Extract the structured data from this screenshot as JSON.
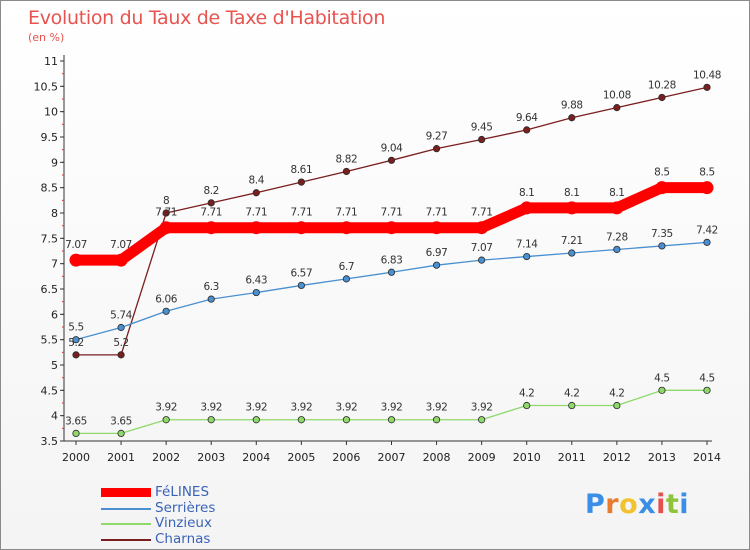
{
  "chart_data": {
    "type": "line",
    "title": "Evolution du Taux de Taxe d'Habitation",
    "subtitle": "(en %)",
    "x": [
      2000,
      2001,
      2002,
      2003,
      2004,
      2005,
      2006,
      2007,
      2008,
      2009,
      2010,
      2011,
      2012,
      2013,
      2014
    ],
    "ylim": [
      3.5,
      11
    ],
    "yticks": [
      "3.5",
      "4",
      "4.5",
      "5",
      "5.5",
      "6",
      "6.5",
      "7",
      "7.5",
      "8",
      "8.5",
      "9",
      "9.5",
      "10",
      "10.5",
      "11"
    ],
    "grid": false,
    "legend_position": "bottom-left",
    "series": [
      {
        "name": "Charnas",
        "color": "#7a1f1f",
        "labels_below": false,
        "values": [
          5.2,
          5.2,
          8,
          8.2,
          8.4,
          8.61,
          8.82,
          9.04,
          9.27,
          9.45,
          9.64,
          9.88,
          10.08,
          10.28,
          10.48
        ],
        "labels": [
          "5.2",
          "5.2",
          "8",
          "8.2",
          "8.4",
          "8.61",
          "8.82",
          "9.04",
          "9.27",
          "9.45",
          "9.64",
          "9.88",
          "10.08",
          "10.28",
          "10.48"
        ]
      },
      {
        "name": "Serrières",
        "color": "#4a8fcf",
        "labels_below": false,
        "values": [
          5.5,
          5.74,
          6.06,
          6.3,
          6.43,
          6.57,
          6.7,
          6.83,
          6.97,
          7.07,
          7.14,
          7.21,
          7.28,
          7.35,
          7.42
        ],
        "labels": [
          "5.5",
          "5.74",
          "6.06",
          "6.3",
          "6.43",
          "6.57",
          "6.7",
          "6.83",
          "6.97",
          "7.07",
          "7.14",
          "7.21",
          "7.28",
          "7.35",
          "7.42"
        ]
      },
      {
        "name": "Vinzieux",
        "color": "#8fd86a",
        "labels_below": false,
        "values": [
          3.65,
          3.65,
          3.92,
          3.92,
          3.92,
          3.92,
          3.92,
          3.92,
          3.92,
          3.92,
          4.2,
          4.2,
          4.2,
          4.5,
          4.5
        ],
        "labels": [
          "3.65",
          "3.65",
          "3.92",
          "3.92",
          "3.92",
          "3.92",
          "3.92",
          "3.92",
          "3.92",
          "3.92",
          "4.2",
          "4.2",
          "4.2",
          "4.5",
          "4.5"
        ]
      },
      {
        "name": "FéLINES",
        "color": "#ff0000",
        "labels_below": false,
        "values": [
          7.07,
          7.07,
          7.71,
          7.71,
          7.71,
          7.71,
          7.71,
          7.71,
          7.71,
          7.71,
          8.1,
          8.1,
          8.1,
          8.5,
          8.5
        ],
        "labels": [
          "7.07",
          "7.07",
          "7.71",
          "7.71",
          "7.71",
          "7.71",
          "7.71",
          "7.71",
          "7.71",
          "7.71",
          "8.1",
          "8.1",
          "8.1",
          "8.5",
          "8.5"
        ]
      }
    ],
    "legend": [
      {
        "name": "FéLINES",
        "color": "#ff0000",
        "thick": true
      },
      {
        "name": "Serrières",
        "color": "#4a8fcf",
        "thick": false
      },
      {
        "name": "Vinzieux",
        "color": "#8fd86a",
        "thick": false
      },
      {
        "name": "Charnas",
        "color": "#7a1f1f",
        "thick": false
      }
    ]
  },
  "logo": {
    "letters": [
      "P",
      "r",
      "o",
      "x",
      "i",
      "t",
      "i"
    ],
    "colors": [
      "#3a8ee6",
      "#e87b2e",
      "#f2c230",
      "#3a8ee6",
      "#e85050",
      "#8fc43a",
      "#3a8ee6"
    ]
  }
}
